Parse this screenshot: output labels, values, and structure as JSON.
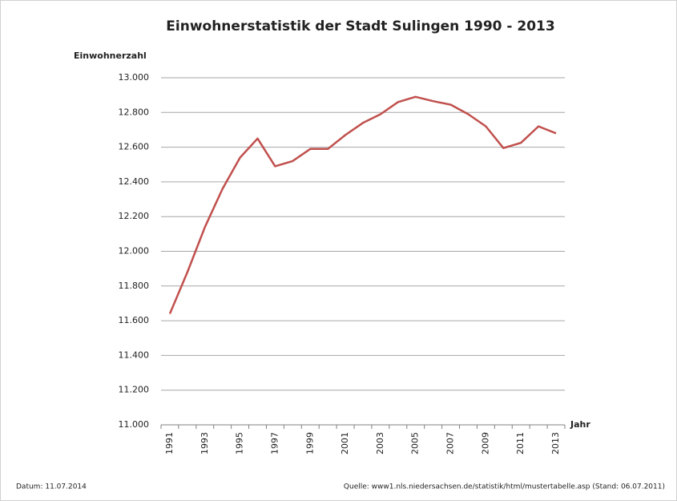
{
  "chart_data": {
    "type": "line",
    "title": "Einwohnerstatistik  der Stadt Sulingen 1990 - 2013",
    "y_label": "Einwohnerzahl",
    "x_label": "Jahr",
    "footer_left": "Datum: 11.07.2014",
    "footer_right": "Quelle: www1.nls.niedersachsen.de/statistik/html/mustertabelle.asp (Stand: 06.07.2011)",
    "categories": [
      "1991",
      null,
      "1993",
      null,
      "1995",
      null,
      "1997",
      null,
      "1999",
      null,
      "2001",
      null,
      "2003",
      null,
      "2005",
      null,
      "2007",
      null,
      "2009",
      null,
      "2011",
      null,
      "2013"
    ],
    "values": [
      11640,
      11880,
      12140,
      12360,
      12540,
      12650,
      12490,
      12520,
      12590,
      12590,
      12670,
      12740,
      12790,
      12860,
      12890,
      12865,
      12845,
      12790,
      12720,
      12595,
      12625,
      12720,
      12680
    ],
    "color": "#c0504d",
    "ylim": [
      11000,
      13000
    ],
    "yticks": [
      {
        "value": 11000,
        "label": "11.000"
      },
      {
        "value": 11200,
        "label": "11.200"
      },
      {
        "value": 11400,
        "label": "11.400"
      },
      {
        "value": 11600,
        "label": "11.600"
      },
      {
        "value": 11800,
        "label": "11.800"
      },
      {
        "value": 12000,
        "label": "12.000"
      },
      {
        "value": 12200,
        "label": "12.200"
      },
      {
        "value": 12400,
        "label": "12.400"
      },
      {
        "value": 12600,
        "label": "12.600"
      },
      {
        "value": 12800,
        "label": "12.800"
      },
      {
        "value": 13000,
        "label": "13.000"
      }
    ],
    "grid": true
  }
}
